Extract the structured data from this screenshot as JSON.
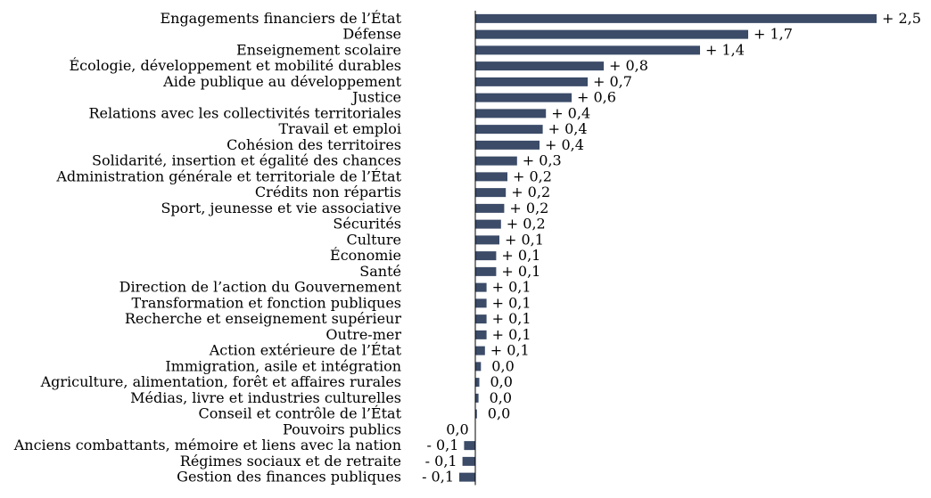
{
  "chart_data": {
    "type": "bar",
    "orientation": "horizontal",
    "bar_color": "#3b4b68",
    "categories": [
      "Engagements financiers de l’État",
      "Défense",
      "Enseignement scolaire",
      "Écologie, développement et mobilité durables",
      "Aide publique au développement",
      "Justice",
      "Relations avec les collectivités territoriales",
      "Travail et emploi",
      "Cohésion des territoires",
      "Solidarité, insertion et égalité des chances",
      "Administration générale et territoriale de l’État",
      "Crédits non répartis",
      "Sport, jeunesse et vie associative",
      "Sécurités",
      "Culture",
      "Économie",
      "Santé",
      "Direction de l’action du Gouvernement",
      "Transformation et fonction publiques",
      "Recherche et enseignement supérieur",
      "Outre-mer",
      "Action extérieure de l’État",
      "Immigration, asile et intégration",
      "Agriculture, alimentation, forêt et affaires rurales",
      "Médias, livre et industries culturelles",
      "Conseil et contrôle de l’État",
      "Pouvoirs publics",
      "Anciens combattants, mémoire et liens avec la nation",
      "Régimes sociaux et de retraite",
      "Gestion des finances publiques"
    ],
    "values": [
      2.5,
      1.7,
      1.4,
      0.8,
      0.7,
      0.6,
      0.44,
      0.42,
      0.4,
      0.26,
      0.2,
      0.19,
      0.18,
      0.16,
      0.15,
      0.13,
      0.13,
      0.07,
      0.07,
      0.07,
      0.07,
      0.06,
      0.035,
      0.025,
      0.02,
      0.01,
      0.0,
      -0.07,
      -0.08,
      -0.1
    ],
    "value_labels": [
      "+ 2,5",
      "+ 1,7",
      "+ 1,4",
      "+ 0,8",
      "+ 0,7",
      "+ 0,6",
      "+ 0,4",
      "+ 0,4",
      "+ 0,4",
      "+ 0,3",
      "+ 0,2",
      "+ 0,2",
      "+ 0,2",
      "+ 0,2",
      "+ 0,1",
      "+ 0,1",
      "+ 0,1",
      "+ 0,1",
      "+ 0,1",
      "+ 0,1",
      "+ 0,1",
      "+ 0,1",
      "0,0",
      "0,0",
      "0,0",
      "0,0",
      "0,0",
      "- 0,1",
      "- 0,1",
      "- 0,1"
    ],
    "xlim": [
      -0.1,
      2.5
    ],
    "title": "",
    "xlabel": "",
    "ylabel": "",
    "grid": false,
    "legend": "none"
  }
}
